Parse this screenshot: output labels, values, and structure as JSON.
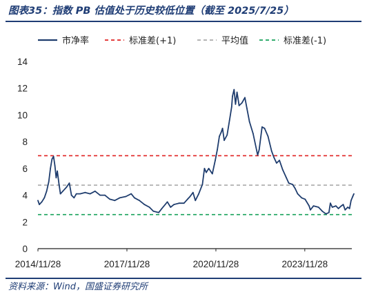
{
  "header": {
    "title": "图表35：指数 PB 估值处于历史较低位置（截至 2025/7/25）"
  },
  "footer": {
    "source": "资料来源：Wind，国盛证券研究所"
  },
  "chart_data": {
    "type": "line",
    "title": "图表35：指数 PB 估值处于历史较低位置（截至 2025/7/25）",
    "xlabel": "",
    "ylabel": "",
    "ylim": [
      0,
      14
    ],
    "yticks": [
      0,
      2,
      4,
      6,
      8,
      10,
      12,
      14
    ],
    "xlim": [
      "2014-11-28",
      "2025-07-25"
    ],
    "xticks": [
      "2014/11/28",
      "2017/11/28",
      "2020/11/28",
      "2023/11/28"
    ],
    "grid": false,
    "legend_position": "top",
    "series": [
      {
        "name": "市净率",
        "color": "#1f3d6e",
        "style": "solid",
        "points": [
          [
            "2014-11-28",
            3.6
          ],
          [
            "2014-12-15",
            3.3
          ],
          [
            "2015-01-15",
            3.5
          ],
          [
            "2015-02-15",
            3.8
          ],
          [
            "2015-03-15",
            4.3
          ],
          [
            "2015-04-10",
            5.0
          ],
          [
            "2015-05-01",
            6.0
          ],
          [
            "2015-05-20",
            6.7
          ],
          [
            "2015-06-08",
            6.9
          ],
          [
            "2015-06-25",
            6.2
          ],
          [
            "2015-07-10",
            5.3
          ],
          [
            "2015-07-25",
            5.8
          ],
          [
            "2015-08-15",
            4.8
          ],
          [
            "2015-09-01",
            4.1
          ],
          [
            "2015-10-01",
            4.3
          ],
          [
            "2015-11-15",
            4.6
          ],
          [
            "2015-12-20",
            4.9
          ],
          [
            "2016-01-15",
            4.0
          ],
          [
            "2016-02-15",
            3.8
          ],
          [
            "2016-03-15",
            4.1
          ],
          [
            "2016-05-01",
            4.1
          ],
          [
            "2016-07-01",
            4.2
          ],
          [
            "2016-09-01",
            4.1
          ],
          [
            "2016-11-01",
            4.3
          ],
          [
            "2017-01-01",
            4.0
          ],
          [
            "2017-03-01",
            4.0
          ],
          [
            "2017-05-01",
            3.7
          ],
          [
            "2017-07-01",
            3.6
          ],
          [
            "2017-09-01",
            3.8
          ],
          [
            "2017-11-15",
            3.9
          ],
          [
            "2018-01-20",
            4.1
          ],
          [
            "2018-03-01",
            3.8
          ],
          [
            "2018-05-01",
            3.6
          ],
          [
            "2018-07-01",
            3.3
          ],
          [
            "2018-09-01",
            3.1
          ],
          [
            "2018-10-20",
            2.8
          ],
          [
            "2018-12-25",
            2.7
          ],
          [
            "2019-02-01",
            3.0
          ],
          [
            "2019-04-10",
            3.5
          ],
          [
            "2019-05-20",
            3.1
          ],
          [
            "2019-07-01",
            3.3
          ],
          [
            "2019-09-01",
            3.4
          ],
          [
            "2019-11-01",
            3.4
          ],
          [
            "2019-12-15",
            3.7
          ],
          [
            "2020-01-15",
            3.9
          ],
          [
            "2020-02-20",
            4.2
          ],
          [
            "2020-03-20",
            3.6
          ],
          [
            "2020-05-01",
            4.1
          ],
          [
            "2020-06-15",
            4.8
          ],
          [
            "2020-07-10",
            6.0
          ],
          [
            "2020-08-01",
            5.7
          ],
          [
            "2020-09-01",
            6.0
          ],
          [
            "2020-10-15",
            5.6
          ],
          [
            "2020-11-20",
            6.6
          ],
          [
            "2020-12-15",
            7.4
          ],
          [
            "2021-01-10",
            8.4
          ],
          [
            "2021-02-01",
            8.7
          ],
          [
            "2021-02-18",
            9.0
          ],
          [
            "2021-03-10",
            8.1
          ],
          [
            "2021-04-15",
            8.5
          ],
          [
            "2021-05-15",
            9.6
          ],
          [
            "2021-06-10",
            10.6
          ],
          [
            "2021-06-20",
            11.4
          ],
          [
            "2021-07-10",
            11.9
          ],
          [
            "2021-07-28",
            10.8
          ],
          [
            "2021-08-15",
            11.7
          ],
          [
            "2021-09-10",
            10.7
          ],
          [
            "2021-10-15",
            10.9
          ],
          [
            "2021-11-20",
            11.3
          ],
          [
            "2021-12-15",
            10.5
          ],
          [
            "2022-01-15",
            9.5
          ],
          [
            "2022-03-01",
            8.6
          ],
          [
            "2022-04-26",
            7.0
          ],
          [
            "2022-05-15",
            7.4
          ],
          [
            "2022-06-20",
            9.1
          ],
          [
            "2022-07-20",
            9.0
          ],
          [
            "2022-09-01",
            8.4
          ],
          [
            "2022-10-15",
            7.3
          ],
          [
            "2022-11-15",
            6.8
          ],
          [
            "2022-12-15",
            6.4
          ],
          [
            "2023-01-20",
            6.6
          ],
          [
            "2023-03-01",
            5.9
          ],
          [
            "2023-04-15",
            5.3
          ],
          [
            "2023-05-15",
            4.9
          ],
          [
            "2023-07-01",
            4.8
          ],
          [
            "2023-08-01",
            4.5
          ],
          [
            "2023-09-01",
            4.1
          ],
          [
            "2023-10-20",
            3.8
          ],
          [
            "2023-12-01",
            3.7
          ],
          [
            "2024-01-20",
            3.2
          ],
          [
            "2024-02-05",
            2.9
          ],
          [
            "2024-03-15",
            3.2
          ],
          [
            "2024-05-15",
            3.1
          ],
          [
            "2024-07-01",
            2.8
          ],
          [
            "2024-08-15",
            2.6
          ],
          [
            "2024-09-20",
            2.7
          ],
          [
            "2024-10-08",
            3.4
          ],
          [
            "2024-11-01",
            3.1
          ],
          [
            "2024-12-15",
            3.2
          ],
          [
            "2025-01-15",
            3.0
          ],
          [
            "2025-02-20",
            3.2
          ],
          [
            "2025-03-15",
            3.3
          ],
          [
            "2025-04-08",
            2.9
          ],
          [
            "2025-05-10",
            3.1
          ],
          [
            "2025-06-01",
            3.0
          ],
          [
            "2025-06-20",
            3.6
          ],
          [
            "2025-07-10",
            3.9
          ],
          [
            "2025-07-25",
            4.1
          ]
        ]
      },
      {
        "name": "标准差(+1)",
        "color": "#e02020",
        "style": "dashed",
        "value": 6.95
      },
      {
        "name": "平均值",
        "color": "#aaaaaa",
        "style": "dashed",
        "value": 4.75
      },
      {
        "name": "标准差(-1)",
        "color": "#16a05a",
        "style": "dashed",
        "value": 2.55
      }
    ]
  }
}
